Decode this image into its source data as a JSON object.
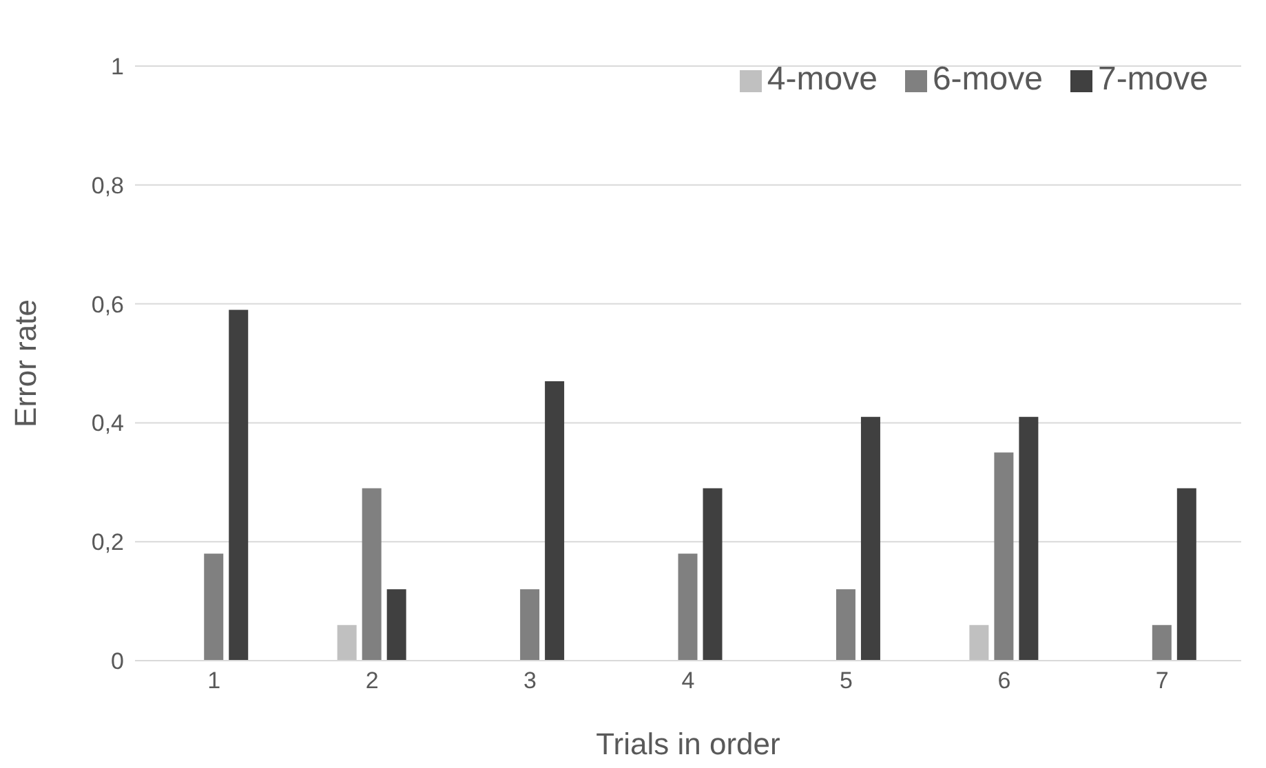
{
  "chart_data": {
    "type": "bar",
    "xlabel": "Trials in order",
    "ylabel": "Error rate",
    "categories": [
      "1",
      "2",
      "3",
      "4",
      "5",
      "6",
      "7"
    ],
    "series": [
      {
        "name": "4-move",
        "color": "#c0c0c0",
        "values": [
          0,
          0.06,
          0,
          0,
          0,
          0.06,
          0
        ]
      },
      {
        "name": "6-move",
        "color": "#808080",
        "values": [
          0.18,
          0.29,
          0.12,
          0.18,
          0.12,
          0.35,
          0.06
        ]
      },
      {
        "name": "7-move",
        "color": "#404040",
        "values": [
          0.59,
          0.12,
          0.47,
          0.29,
          0.41,
          0.41,
          0.29
        ]
      }
    ],
    "ylim": [
      0,
      1
    ],
    "yticks": [
      0,
      {
        "value": 0.2,
        "label": "0,2"
      },
      {
        "value": 0.4,
        "label": "0,4"
      },
      {
        "value": 0.6,
        "label": "0,6"
      },
      {
        "value": 0.8,
        "label": "0,8"
      },
      1
    ],
    "grid": "y",
    "legend": "top right"
  }
}
